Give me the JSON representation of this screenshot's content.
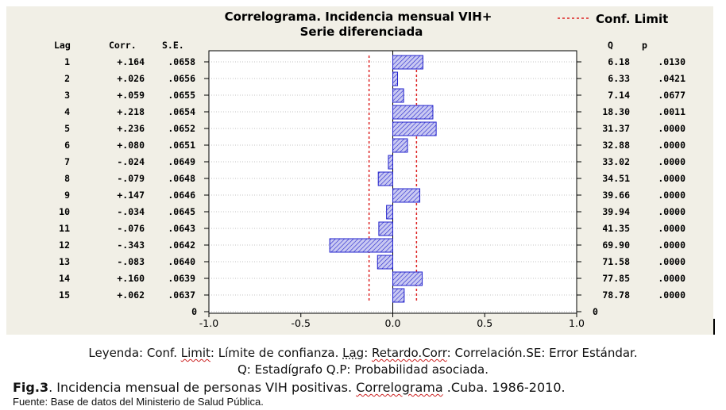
{
  "colors": {
    "bar_fill": "#c9c9f2",
    "bar_stroke": "#2222cc",
    "conf_line": "#dd2222",
    "panel_bg": "#f1efe6"
  },
  "chart_data": {
    "type": "bar",
    "orientation": "horizontal",
    "title": "Correlograma. Incidencia mensual VIH+",
    "subtitle": "Serie diferenciada",
    "legend_label": "Conf. Limit",
    "legend_position": "top-right",
    "headers": {
      "lag": "Lag",
      "corr": "Corr.",
      "se": "S.E.",
      "q": "Q",
      "p": "p"
    },
    "lags": [
      1,
      2,
      3,
      4,
      5,
      6,
      7,
      8,
      9,
      10,
      11,
      12,
      13,
      14,
      15
    ],
    "corr_labels": [
      "+.164",
      "+.026",
      "+.059",
      "+.218",
      "+.236",
      "+.080",
      "-.024",
      "-.079",
      "+.147",
      "-.034",
      "-.076",
      "-.343",
      "-.083",
      "+.160",
      "+.062"
    ],
    "values": [
      0.164,
      0.026,
      0.059,
      0.218,
      0.236,
      0.08,
      -0.024,
      -0.079,
      0.147,
      -0.034,
      -0.076,
      -0.343,
      -0.083,
      0.16,
      0.062
    ],
    "se": [
      ".0658",
      ".0656",
      ".0655",
      ".0654",
      ".0652",
      ".0651",
      ".0649",
      ".0648",
      ".0646",
      ".0645",
      ".0643",
      ".0642",
      ".0640",
      ".0639",
      ".0637"
    ],
    "q": [
      "6.18",
      "6.33",
      "7.14",
      "18.30",
      "31.37",
      "32.88",
      "33.02",
      "34.51",
      "39.66",
      "39.94",
      "41.35",
      "69.90",
      "71.58",
      "77.85",
      "78.78"
    ],
    "p": [
      ".0130",
      ".0421",
      ".0677",
      ".0011",
      ".0000",
      ".0000",
      ".0000",
      ".0000",
      ".0000",
      ".0000",
      ".0000",
      ".0000",
      ".0000",
      ".0000",
      ".0000"
    ],
    "conf_limit": [
      -0.129,
      0.129
    ],
    "xlim": [
      -1.0,
      1.0
    ],
    "xticks": [
      -1.0,
      -0.5,
      0.0,
      0.5,
      1.0
    ],
    "xtick_labels": [
      "-1.0",
      "-0.5",
      "0.0",
      "0.5",
      "1.0"
    ],
    "zero_row_left": "0",
    "zero_row_right": "0"
  },
  "caption": {
    "legend_line1": {
      "p1": "Leyenda: Conf. ",
      "limit": "Limit",
      "p2": ": Límite de confianza. ",
      "lag": "Lag",
      "p3": ": ",
      "retardo": "Retardo.Corr",
      "p4": ":  Correlación.SE: Error Estándar."
    },
    "legend_line2": "Q: Estadígrafo Q.P: Probabilidad asociada.",
    "fig_label": "Fig.3",
    "fig_p1": ". Incidencia mensual de personas VIH positivas. ",
    "fig_corr": "Correlograma",
    "fig_p2": " .Cuba. 1986-2010.",
    "source": "Fuente: Base de datos del Ministerio de Salud Pública."
  }
}
